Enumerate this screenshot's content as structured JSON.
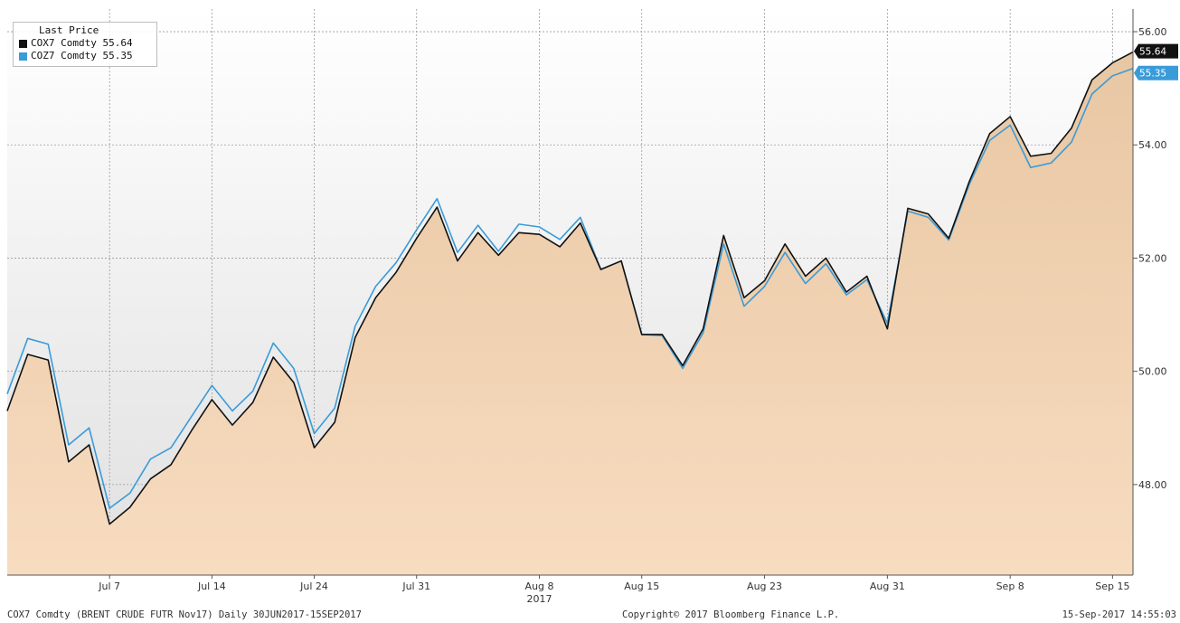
{
  "chart_data": {
    "type": "area",
    "y_ticks": [
      "56.00",
      "54.00",
      "52.00",
      "50.00",
      "48.00"
    ],
    "y_tick_values": [
      56,
      54,
      52,
      50,
      48
    ],
    "ylim": [
      46.4,
      56.4
    ],
    "x_tick_labels": [
      "Jul 7",
      "Jul 14",
      "Jul 24",
      "Jul 31",
      "Aug 8",
      "Aug 15",
      "Aug 23",
      "Aug 31",
      "Sep 8",
      "Sep 15"
    ],
    "x_tick_indices": [
      5,
      10,
      15,
      20,
      26,
      31,
      37,
      43,
      49,
      54
    ],
    "year_label": "2017",
    "year_label_index": 26,
    "grid": true,
    "legend_position": "top-left",
    "legend_title": "Last Price",
    "dates": [
      "2017-06-30",
      "2017-07-03",
      "2017-07-04",
      "2017-07-05",
      "2017-07-06",
      "2017-07-07",
      "2017-07-10",
      "2017-07-11",
      "2017-07-12",
      "2017-07-13",
      "2017-07-14",
      "2017-07-17",
      "2017-07-18",
      "2017-07-19",
      "2017-07-20",
      "2017-07-21",
      "2017-07-24",
      "2017-07-25",
      "2017-07-26",
      "2017-07-27",
      "2017-07-28",
      "2017-07-31",
      "2017-08-01",
      "2017-08-02",
      "2017-08-03",
      "2017-08-04",
      "2017-08-07",
      "2017-08-08",
      "2017-08-09",
      "2017-08-10",
      "2017-08-11",
      "2017-08-14",
      "2017-08-15",
      "2017-08-16",
      "2017-08-17",
      "2017-08-18",
      "2017-08-21",
      "2017-08-22",
      "2017-08-23",
      "2017-08-24",
      "2017-08-25",
      "2017-08-28",
      "2017-08-29",
      "2017-08-30",
      "2017-08-31",
      "2017-09-01",
      "2017-09-04",
      "2017-09-05",
      "2017-09-06",
      "2017-09-07",
      "2017-09-08",
      "2017-09-11",
      "2017-09-12",
      "2017-09-13",
      "2017-09-14",
      "2017-09-15"
    ],
    "series": [
      {
        "name": "COX7 Comdty",
        "legend_value": "55.64",
        "last_label": "55.64",
        "color": "#111111",
        "values": [
          49.3,
          50.3,
          50.2,
          48.4,
          48.7,
          47.3,
          47.6,
          48.1,
          48.35,
          48.95,
          49.5,
          49.05,
          49.45,
          50.25,
          49.8,
          48.65,
          49.1,
          50.6,
          51.3,
          51.75,
          52.35,
          52.9,
          51.95,
          52.45,
          52.05,
          52.45,
          52.42,
          52.2,
          52.62,
          51.8,
          51.95,
          50.65,
          50.65,
          50.1,
          50.75,
          52.4,
          51.3,
          51.6,
          52.25,
          51.68,
          52.0,
          51.4,
          51.68,
          50.75,
          52.88,
          52.78,
          52.35,
          53.35,
          54.2,
          54.5,
          53.8,
          53.85,
          54.3,
          55.15,
          55.45,
          55.64
        ]
      },
      {
        "name": "COZ7 Comdty",
        "legend_value": "55.35",
        "last_label": "55.35",
        "color": "#3a9bd9",
        "values": [
          49.6,
          50.58,
          50.48,
          48.7,
          49.0,
          47.58,
          47.85,
          48.45,
          48.65,
          49.2,
          49.75,
          49.3,
          49.65,
          50.5,
          50.05,
          48.9,
          49.35,
          50.8,
          51.5,
          51.92,
          52.5,
          53.05,
          52.1,
          52.58,
          52.12,
          52.6,
          52.55,
          52.33,
          52.72,
          51.8,
          51.95,
          50.65,
          50.63,
          50.05,
          50.68,
          52.25,
          51.15,
          51.5,
          52.1,
          51.55,
          51.9,
          51.35,
          51.62,
          50.85,
          52.83,
          52.72,
          52.32,
          53.3,
          54.08,
          54.35,
          53.6,
          53.68,
          54.05,
          54.9,
          55.22,
          55.35
        ]
      }
    ],
    "colors": {
      "area_fill_top": "#e8c7a3",
      "area_fill_bottom": "#f8dcc0",
      "background_top": "#ffffff",
      "background_bottom": "#e0e0e0",
      "grid": "#9a9a9a",
      "badge_dark": "#111111",
      "badge_blue": "#3a9bd9"
    }
  },
  "footer": {
    "left": "COX7 Comdty (BRENT CRUDE FUTR  Nov17)  Daily 30JUN2017-15SEP2017",
    "center": "Copyright© 2017 Bloomberg Finance L.P.",
    "right": "15-Sep-2017 14:55:03"
  }
}
